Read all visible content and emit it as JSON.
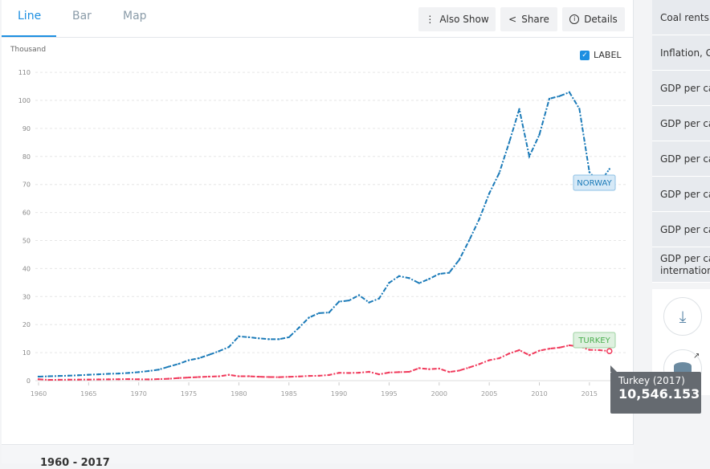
{
  "tabs": [
    {
      "label": "Line",
      "active": true
    },
    {
      "label": "Bar"
    },
    {
      "label": "Map"
    }
  ],
  "toolbar": {
    "also_show": "Also Show",
    "share": "Share",
    "details": "Details"
  },
  "label_toggle": {
    "label": "LABEL",
    "checked": true
  },
  "sidebar": {
    "items": [
      "Coal rents",
      "Inflation, G",
      "GDP per ca",
      "GDP per ca",
      "GDP per ca",
      "GDP per ca",
      "GDP per ca"
    ],
    "last_item": [
      "GDP per ca",
      "internation"
    ]
  },
  "tooltip": {
    "title": "Turkey (2017)",
    "value": "10,546.153"
  },
  "footer": {
    "range": "1960 - 2017"
  },
  "chart_data": {
    "type": "line",
    "ylabel": "Thousand",
    "ylim": [
      0,
      110
    ],
    "yticks": [
      0,
      10,
      20,
      30,
      40,
      50,
      60,
      70,
      80,
      90,
      100,
      110
    ],
    "xticks": [
      1960,
      1965,
      1970,
      1975,
      1980,
      1985,
      1990,
      1995,
      2000,
      2005,
      2010,
      2015
    ],
    "x_start": 1960,
    "series": [
      {
        "name": "NORWAY",
        "color": "#1a7ab8",
        "values": [
          1.44,
          1.56,
          1.67,
          1.78,
          1.92,
          2.1,
          2.27,
          2.44,
          2.55,
          2.76,
          3.06,
          3.44,
          3.93,
          5.0,
          6.0,
          7.3,
          8.0,
          9.2,
          10.5,
          12.0,
          15.8,
          15.5,
          15.1,
          14.8,
          14.8,
          15.5,
          18.9,
          22.5,
          24.1,
          24.3,
          28.2,
          28.6,
          30.5,
          27.9,
          29.3,
          34.9,
          37.3,
          36.6,
          34.8,
          36.3,
          38.1,
          38.5,
          43.1,
          50.1,
          57.6,
          66.8,
          74.1,
          85.1,
          96.9,
          80.0,
          87.7,
          100.6,
          101.5,
          102.9,
          97.0,
          74.4,
          70.5,
          75.5
        ]
      },
      {
        "name": "TURKEY",
        "color": "#f0385a",
        "values": [
          0.5,
          0.28,
          0.31,
          0.35,
          0.37,
          0.39,
          0.44,
          0.47,
          0.51,
          0.56,
          0.49,
          0.46,
          0.56,
          0.69,
          0.93,
          1.14,
          1.29,
          1.44,
          1.55,
          2.08,
          1.56,
          1.58,
          1.4,
          1.3,
          1.25,
          1.37,
          1.5,
          1.7,
          1.75,
          2.02,
          2.79,
          2.74,
          2.84,
          3.16,
          2.27,
          2.9,
          3.05,
          3.14,
          4.46,
          4.1,
          4.3,
          3.1,
          3.6,
          4.7,
          5.9,
          7.3,
          8.0,
          9.7,
          10.9,
          9.1,
          10.7,
          11.4,
          11.8,
          12.6,
          12.2,
          11.0,
          10.9,
          10.546
        ]
      }
    ]
  }
}
